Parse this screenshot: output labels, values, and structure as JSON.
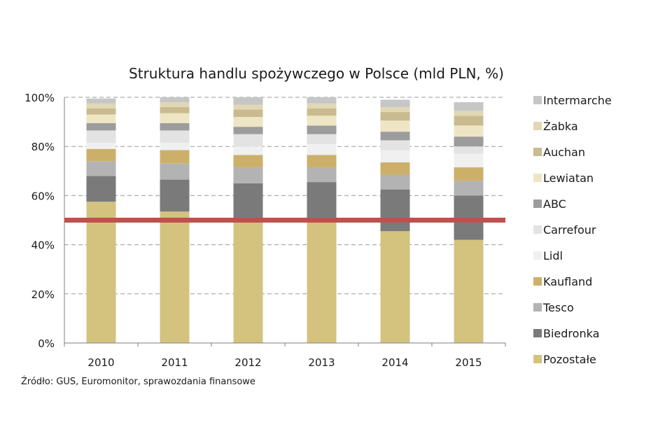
{
  "chart_data": {
    "type": "bar",
    "stacked": true,
    "title": "Struktura handlu spożywczego w Polsce (mld PLN, %)",
    "categories": [
      "2010",
      "2011",
      "2012",
      "2013",
      "2014",
      "2015"
    ],
    "ylim": [
      0,
      100
    ],
    "yticks": [
      "0%",
      "20%",
      "40%",
      "60%",
      "80%",
      "100%"
    ],
    "grid": true,
    "legend_position": "right",
    "reference_line": {
      "value": 50,
      "color": "#c0504d"
    },
    "series": [
      {
        "name": "Pozostałe",
        "color": "#d4c27f",
        "values": [
          57.5,
          53.5,
          49.5,
          49.5,
          45.5,
          42.0
        ]
      },
      {
        "name": "Biedronka",
        "color": "#7a7a7a",
        "values": [
          10.5,
          13.0,
          15.5,
          16.0,
          17.0,
          18.0
        ]
      },
      {
        "name": "Tesco",
        "color": "#b3b3b3",
        "values": [
          6.0,
          6.5,
          6.5,
          6.0,
          6.0,
          6.0
        ]
      },
      {
        "name": "Kaufland",
        "color": "#ccb06a",
        "values": [
          5.0,
          5.5,
          5.0,
          5.0,
          5.0,
          5.5
        ]
      },
      {
        "name": "Lidl",
        "color": "#f0f0f0",
        "values": [
          2.5,
          3.0,
          3.5,
          4.5,
          5.0,
          5.5
        ]
      },
      {
        "name": "Carrefour",
        "color": "#e3e3e3",
        "values": [
          5.0,
          5.0,
          5.0,
          4.0,
          4.0,
          3.0
        ]
      },
      {
        "name": "ABC",
        "color": "#9c9c9c",
        "values": [
          3.0,
          3.0,
          3.0,
          3.5,
          3.5,
          4.0
        ]
      },
      {
        "name": "Lewiatan",
        "color": "#eee5c4",
        "values": [
          3.5,
          4.0,
          4.0,
          4.0,
          4.5,
          4.5
        ]
      },
      {
        "name": "Auchan",
        "color": "#c9bb8f",
        "values": [
          2.5,
          2.5,
          3.0,
          3.0,
          3.5,
          4.0
        ]
      },
      {
        "name": "Żabka",
        "color": "#e0d7b5",
        "values": [
          2.0,
          2.0,
          2.0,
          2.0,
          2.0,
          2.0
        ]
      },
      {
        "name": "Intermarche",
        "color": "#c6c6c6",
        "values": [
          2.0,
          2.0,
          3.0,
          2.5,
          3.0,
          3.5
        ]
      }
    ],
    "legend_order": [
      "Intermarche",
      "Żabka",
      "Auchan",
      "Lewiatan",
      "ABC",
      "Carrefour",
      "Lidl",
      "Kaufland",
      "Tesco",
      "Biedronka",
      "Pozostałe"
    ]
  },
  "source_note": "Źródło: GUS, Euromonitor, sprawozdania finansowe"
}
